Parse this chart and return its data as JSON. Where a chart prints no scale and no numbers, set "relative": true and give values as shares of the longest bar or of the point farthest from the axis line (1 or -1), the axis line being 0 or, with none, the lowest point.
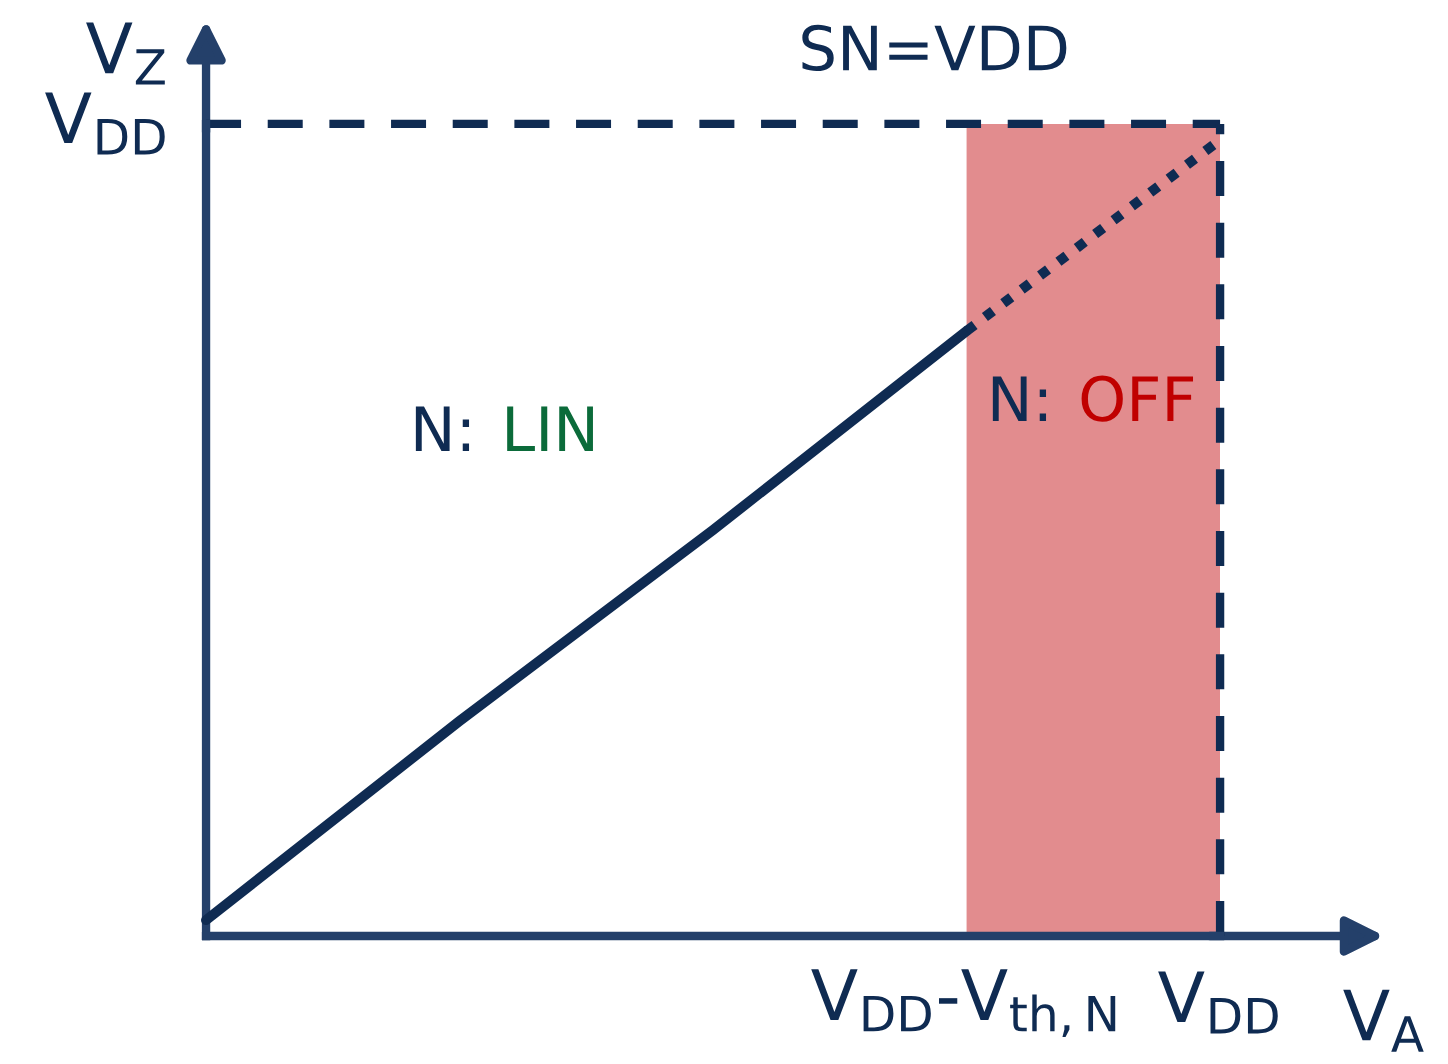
{
  "chart_data": {
    "type": "line",
    "title": "SN=VDD",
    "xlabel": "V$_{A}$",
    "ylabel": "V$_{Z}$",
    "relative": true,
    "categories": [
      null,
      null,
      null,
      "V$_{DD}$-V$_{th,N}$",
      "V$_{DD}$"
    ],
    "series": [
      {
        "color": "#0f2b52",
        "line_style": "solid",
        "values": [
          0.02,
          0.27,
          0.51,
          0.76,
          null
        ]
      },
      {
        "color": "#0f2b52",
        "line_style": "dotted",
        "values": [
          null,
          null,
          null,
          0.76,
          1
        ]
      }
    ],
    "ref_lines": [
      {
        "axis": "y",
        "value": 1.02,
        "line_style": "dashed",
        "color": "#0f2b52",
        "label": "V$_{DD}$"
      },
      {
        "axis": "x",
        "value": "V$_{DD}$",
        "line_style": "dashed",
        "color": "#0f2b52"
      }
    ],
    "bands": [
      {
        "axis": "x",
        "from": "V$_{DD}$-V$_{th,N}$",
        "to": "V$_{DD}$",
        "color": "#e28c8e",
        "label": "N: OFF"
      }
    ],
    "annotations": [
      "N: LIN"
    ]
  }
}
